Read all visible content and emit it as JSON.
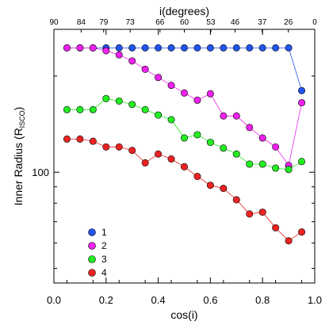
{
  "chart_data": {
    "type": "scatter",
    "xlabel": "cos(i)",
    "top_xlabel": "i(degrees)",
    "ylabel_main": "Inner Radius (R",
    "ylabel_sub": "ISCO",
    "ylabel_end": ")",
    "xlim": [
      0.0,
      1.0
    ],
    "ylim": [
      45,
      280
    ],
    "y_scale": "log",
    "x_ticks": [
      "0.0",
      "0.2",
      "0.4",
      "0.6",
      "0.8",
      "1.0"
    ],
    "top_ticks": [
      "90",
      "84",
      "79",
      "73",
      "66",
      "60",
      "53",
      "46",
      "37",
      "26",
      "0"
    ],
    "y_tick_label": "100",
    "legend_position": "bottom-left",
    "x": [
      0.05,
      0.1,
      0.15,
      0.2,
      0.25,
      0.3,
      0.35,
      0.4,
      0.45,
      0.5,
      0.55,
      0.6,
      0.65,
      0.7,
      0.75,
      0.8,
      0.85,
      0.9,
      0.95
    ],
    "series": [
      {
        "name": "1",
        "color": "#2255ee",
        "values": [
          245,
          245,
          245,
          245,
          245,
          245,
          245,
          245,
          245,
          245,
          245,
          245,
          245,
          245,
          245,
          245,
          245,
          245,
          180
        ]
      },
      {
        "name": "2",
        "color": "#ee22ee",
        "values": [
          245,
          245,
          245,
          240,
          233,
          223,
          210,
          198,
          187,
          177,
          168,
          176,
          150,
          150,
          138,
          128,
          120,
          105,
          165
        ]
      },
      {
        "name": "3",
        "color": "#22ee22",
        "values": [
          157,
          157,
          157,
          170,
          167,
          163,
          157,
          151,
          146,
          128,
          131,
          124,
          119,
          114,
          106,
          106,
          103,
          102,
          108
        ]
      },
      {
        "name": "4",
        "color": "#ee2222",
        "values": [
          127,
          127,
          125,
          120,
          120,
          117,
          107,
          114,
          110,
          104,
          97,
          91,
          89,
          82,
          74,
          75,
          67,
          61,
          65
        ]
      }
    ]
  }
}
